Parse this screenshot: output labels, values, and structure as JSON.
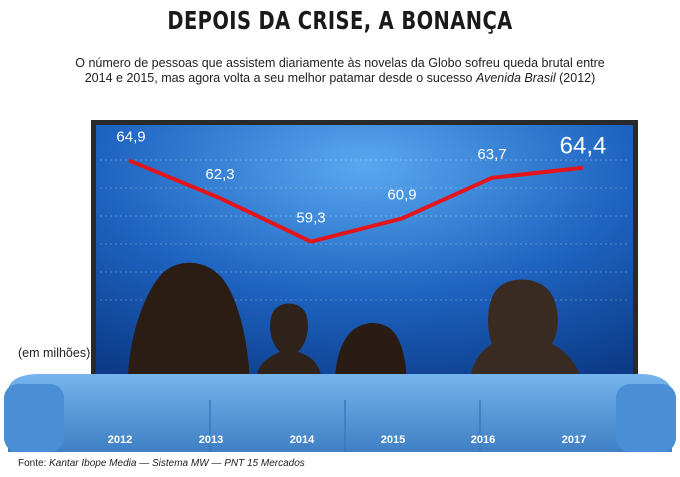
{
  "title": "DEPOIS DA CRISE, A BONANÇA",
  "subtitle_main": "O número de pessoas que assistem diariamente às novelas da Globo sofreu queda brutal entre 2014 e 2015, mas agora volta a seu melhor patamar desde o sucesso",
  "subtitle_italic": "Avenida Brasil",
  "subtitle_end": " (2012)",
  "unit_label": "(em milhões)",
  "source_prefix": "Fonte: ",
  "source_text": "Kantar Ibope Media — Sistema MW — PNT 15 Mercados",
  "colors": {
    "line": "#e3151b",
    "screen": "#1a5fb4",
    "sofa": "#5b9ee0",
    "frame": "#2a2a2a"
  },
  "chart_data": {
    "type": "line",
    "categories": [
      "2012",
      "2013",
      "2014",
      "2015",
      "2016",
      "2017"
    ],
    "values": [
      64.9,
      62.3,
      59.3,
      60.9,
      63.7,
      64.4
    ],
    "value_labels": [
      "64,9",
      "62,3",
      "59,3",
      "60,9",
      "63,7",
      "64,4"
    ],
    "ylim": [
      57,
      67
    ],
    "grid": true
  }
}
